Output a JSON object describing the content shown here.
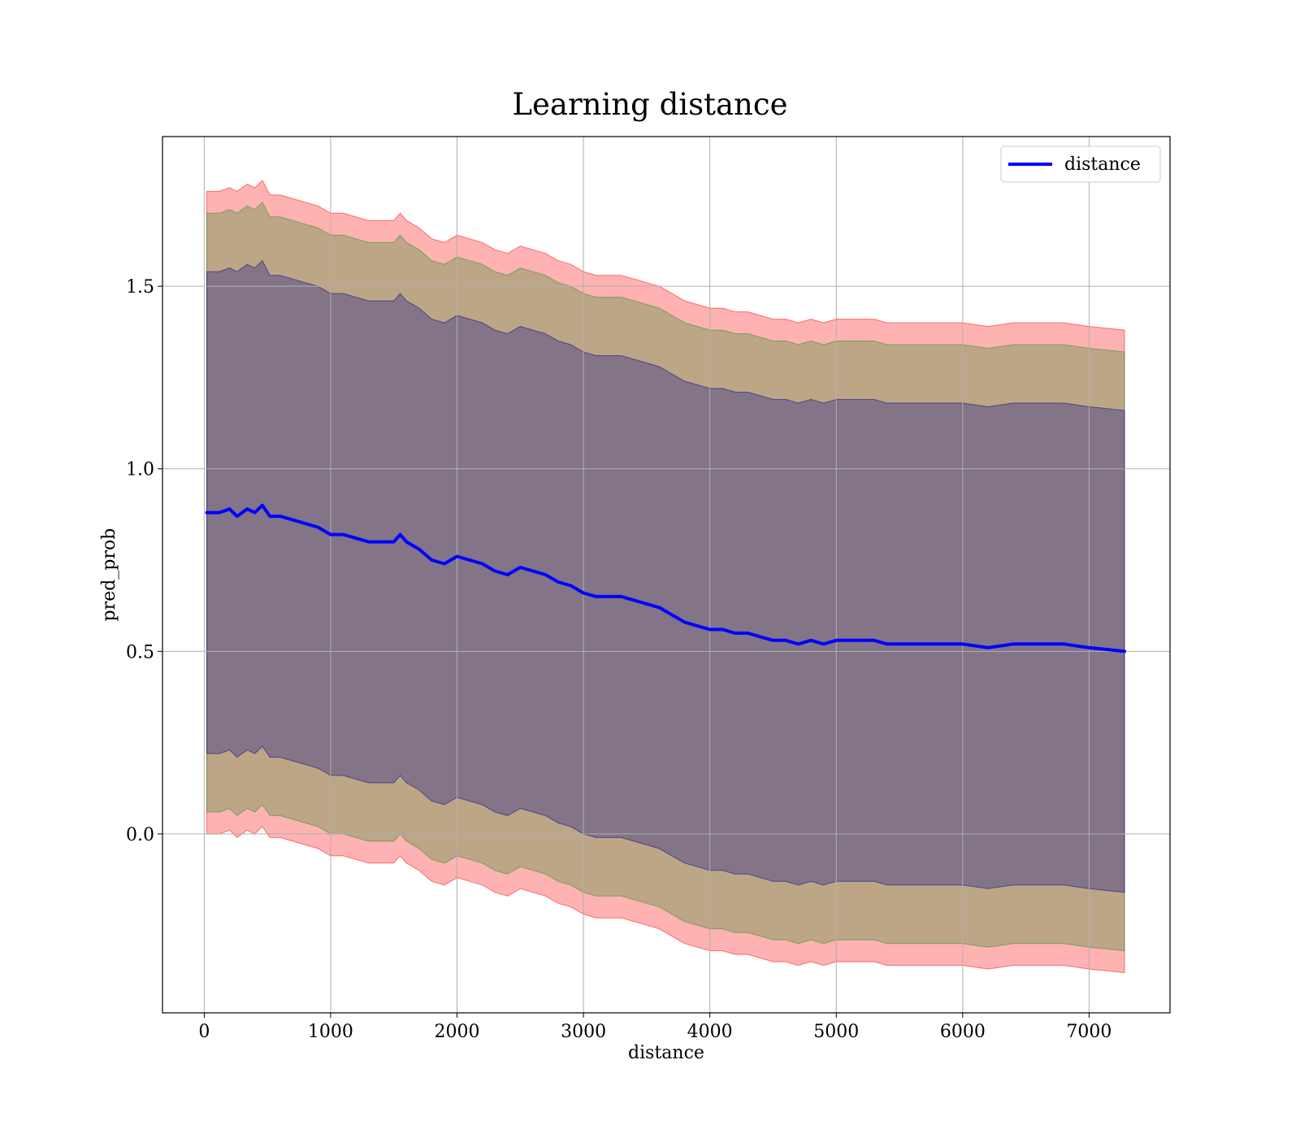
{
  "chart_data": {
    "type": "line",
    "title": "Learning distance",
    "xlabel": "distance",
    "ylabel": "pred_prob",
    "xlim": [
      -330,
      7640
    ],
    "ylim": [
      -0.49,
      1.91
    ],
    "xticks": [
      {
        "value": 0,
        "label": "0"
      },
      {
        "value": 1000,
        "label": "1000"
      },
      {
        "value": 2000,
        "label": "2000"
      },
      {
        "value": 3000,
        "label": "3000"
      },
      {
        "value": 4000,
        "label": "4000"
      },
      {
        "value": 5000,
        "label": "5000"
      },
      {
        "value": 6000,
        "label": "6000"
      },
      {
        "value": 7000,
        "label": "7000"
      }
    ],
    "yticks": [
      {
        "value": 0.0,
        "label": "0.0"
      },
      {
        "value": 0.5,
        "label": "0.5"
      },
      {
        "value": 1.0,
        "label": "1.0"
      },
      {
        "value": 1.5,
        "label": "1.5"
      }
    ],
    "grid": true,
    "legend_position": "top-right",
    "x": [
      20,
      120,
      200,
      260,
      340,
      400,
      460,
      520,
      600,
      700,
      800,
      900,
      1000,
      1100,
      1200,
      1300,
      1400,
      1500,
      1550,
      1600,
      1700,
      1800,
      1900,
      2000,
      2100,
      2200,
      2300,
      2400,
      2500,
      2600,
      2700,
      2800,
      2900,
      3000,
      3100,
      3200,
      3300,
      3400,
      3500,
      3600,
      3700,
      3800,
      3900,
      4000,
      4100,
      4200,
      4300,
      4400,
      4500,
      4600,
      4700,
      4800,
      4900,
      5000,
      5100,
      5200,
      5300,
      5400,
      5500,
      5600,
      5700,
      5800,
      6000,
      6200,
      6400,
      6600,
      6800,
      7000,
      7280
    ],
    "series": [
      {
        "name": "distance",
        "color": "#0000ff",
        "values": [
          0.88,
          0.88,
          0.89,
          0.87,
          0.89,
          0.88,
          0.9,
          0.87,
          0.87,
          0.86,
          0.85,
          0.84,
          0.82,
          0.82,
          0.81,
          0.8,
          0.8,
          0.8,
          0.82,
          0.8,
          0.78,
          0.75,
          0.74,
          0.76,
          0.75,
          0.74,
          0.72,
          0.71,
          0.73,
          0.72,
          0.71,
          0.69,
          0.68,
          0.66,
          0.65,
          0.65,
          0.65,
          0.64,
          0.63,
          0.62,
          0.6,
          0.58,
          0.57,
          0.56,
          0.56,
          0.55,
          0.55,
          0.54,
          0.53,
          0.53,
          0.52,
          0.53,
          0.52,
          0.53,
          0.53,
          0.53,
          0.53,
          0.52,
          0.52,
          0.52,
          0.52,
          0.52,
          0.52,
          0.51,
          0.52,
          0.52,
          0.52,
          0.51,
          0.5
        ]
      }
    ],
    "bands": [
      {
        "color": "#ff0000",
        "opacity": 0.3,
        "upper": [
          1.76,
          1.76,
          1.77,
          1.76,
          1.78,
          1.77,
          1.79,
          1.75,
          1.75,
          1.74,
          1.73,
          1.72,
          1.7,
          1.7,
          1.69,
          1.68,
          1.68,
          1.68,
          1.7,
          1.68,
          1.66,
          1.63,
          1.62,
          1.64,
          1.63,
          1.62,
          1.6,
          1.59,
          1.61,
          1.6,
          1.59,
          1.57,
          1.56,
          1.54,
          1.53,
          1.53,
          1.53,
          1.52,
          1.51,
          1.5,
          1.48,
          1.46,
          1.45,
          1.44,
          1.44,
          1.43,
          1.43,
          1.42,
          1.41,
          1.41,
          1.4,
          1.41,
          1.4,
          1.41,
          1.41,
          1.41,
          1.41,
          1.4,
          1.4,
          1.4,
          1.4,
          1.4,
          1.4,
          1.39,
          1.4,
          1.4,
          1.4,
          1.39,
          1.38
        ],
        "lower": [
          0.0,
          0.0,
          0.01,
          -0.01,
          0.01,
          0.0,
          0.02,
          -0.01,
          -0.01,
          -0.02,
          -0.03,
          -0.04,
          -0.06,
          -0.06,
          -0.07,
          -0.08,
          -0.08,
          -0.08,
          -0.06,
          -0.08,
          -0.1,
          -0.13,
          -0.14,
          -0.12,
          -0.13,
          -0.14,
          -0.16,
          -0.17,
          -0.15,
          -0.16,
          -0.17,
          -0.19,
          -0.2,
          -0.22,
          -0.23,
          -0.23,
          -0.23,
          -0.24,
          -0.25,
          -0.26,
          -0.28,
          -0.3,
          -0.31,
          -0.32,
          -0.32,
          -0.33,
          -0.33,
          -0.34,
          -0.35,
          -0.35,
          -0.36,
          -0.35,
          -0.36,
          -0.35,
          -0.35,
          -0.35,
          -0.35,
          -0.36,
          -0.36,
          -0.36,
          -0.36,
          -0.36,
          -0.36,
          -0.37,
          -0.36,
          -0.36,
          -0.36,
          -0.37,
          -0.38
        ]
      },
      {
        "color": "#228b22",
        "opacity": 0.3,
        "upper": [
          1.7,
          1.7,
          1.71,
          1.7,
          1.72,
          1.71,
          1.73,
          1.69,
          1.69,
          1.68,
          1.67,
          1.66,
          1.64,
          1.64,
          1.63,
          1.62,
          1.62,
          1.62,
          1.64,
          1.62,
          1.6,
          1.57,
          1.56,
          1.58,
          1.57,
          1.56,
          1.54,
          1.53,
          1.55,
          1.54,
          1.53,
          1.51,
          1.5,
          1.48,
          1.47,
          1.47,
          1.47,
          1.46,
          1.45,
          1.44,
          1.42,
          1.4,
          1.39,
          1.38,
          1.38,
          1.37,
          1.37,
          1.36,
          1.35,
          1.35,
          1.34,
          1.35,
          1.34,
          1.35,
          1.35,
          1.35,
          1.35,
          1.34,
          1.34,
          1.34,
          1.34,
          1.34,
          1.34,
          1.33,
          1.34,
          1.34,
          1.34,
          1.33,
          1.32
        ],
        "lower": [
          0.06,
          0.06,
          0.07,
          0.05,
          0.07,
          0.06,
          0.08,
          0.05,
          0.05,
          0.04,
          0.03,
          0.02,
          0.0,
          0.0,
          -0.01,
          -0.02,
          -0.02,
          -0.02,
          0.0,
          -0.02,
          -0.04,
          -0.07,
          -0.08,
          -0.06,
          -0.07,
          -0.08,
          -0.1,
          -0.11,
          -0.09,
          -0.1,
          -0.11,
          -0.13,
          -0.14,
          -0.16,
          -0.17,
          -0.17,
          -0.17,
          -0.18,
          -0.19,
          -0.2,
          -0.22,
          -0.24,
          -0.25,
          -0.26,
          -0.26,
          -0.27,
          -0.27,
          -0.28,
          -0.29,
          -0.29,
          -0.3,
          -0.29,
          -0.3,
          -0.29,
          -0.29,
          -0.29,
          -0.29,
          -0.3,
          -0.3,
          -0.3,
          -0.3,
          -0.3,
          -0.3,
          -0.31,
          -0.3,
          -0.3,
          -0.3,
          -0.31,
          -0.32
        ]
      },
      {
        "color": "#00008b",
        "opacity": 0.3,
        "upper": [
          1.54,
          1.54,
          1.55,
          1.54,
          1.56,
          1.55,
          1.57,
          1.53,
          1.53,
          1.52,
          1.51,
          1.5,
          1.48,
          1.48,
          1.47,
          1.46,
          1.46,
          1.46,
          1.48,
          1.46,
          1.44,
          1.41,
          1.4,
          1.42,
          1.41,
          1.4,
          1.38,
          1.37,
          1.39,
          1.38,
          1.37,
          1.35,
          1.34,
          1.32,
          1.31,
          1.31,
          1.31,
          1.3,
          1.29,
          1.28,
          1.26,
          1.24,
          1.23,
          1.22,
          1.22,
          1.21,
          1.21,
          1.2,
          1.19,
          1.19,
          1.18,
          1.19,
          1.18,
          1.19,
          1.19,
          1.19,
          1.19,
          1.18,
          1.18,
          1.18,
          1.18,
          1.18,
          1.18,
          1.17,
          1.18,
          1.18,
          1.18,
          1.17,
          1.16
        ],
        "lower": [
          0.22,
          0.22,
          0.23,
          0.21,
          0.23,
          0.22,
          0.24,
          0.21,
          0.21,
          0.2,
          0.19,
          0.18,
          0.16,
          0.16,
          0.15,
          0.14,
          0.14,
          0.14,
          0.16,
          0.14,
          0.12,
          0.09,
          0.08,
          0.1,
          0.09,
          0.08,
          0.06,
          0.05,
          0.07,
          0.06,
          0.05,
          0.03,
          0.02,
          0.0,
          -0.01,
          -0.01,
          -0.01,
          -0.02,
          -0.03,
          -0.04,
          -0.06,
          -0.08,
          -0.09,
          -0.1,
          -0.1,
          -0.11,
          -0.11,
          -0.12,
          -0.13,
          -0.13,
          -0.14,
          -0.13,
          -0.14,
          -0.13,
          -0.13,
          -0.13,
          -0.13,
          -0.14,
          -0.14,
          -0.14,
          -0.14,
          -0.14,
          -0.14,
          -0.15,
          -0.14,
          -0.14,
          -0.14,
          -0.15,
          -0.16
        ]
      }
    ]
  }
}
